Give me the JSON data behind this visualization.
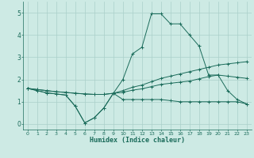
{
  "xlabel": "Humidex (Indice chaleur)",
  "x": [
    0,
    1,
    2,
    3,
    4,
    5,
    6,
    7,
    8,
    9,
    10,
    11,
    12,
    13,
    14,
    15,
    16,
    17,
    18,
    19,
    20,
    21,
    22,
    23
  ],
  "line1": [
    1.6,
    1.5,
    1.4,
    1.35,
    1.3,
    0.8,
    0.05,
    0.28,
    0.72,
    1.38,
    1.1,
    1.1,
    1.1,
    1.1,
    1.1,
    1.05,
    1.0,
    1.0,
    1.0,
    1.0,
    1.0,
    1.0,
    1.0,
    0.9
  ],
  "line2": [
    1.6,
    1.5,
    1.4,
    1.35,
    1.3,
    0.8,
    0.05,
    0.28,
    0.72,
    1.38,
    2.0,
    3.15,
    3.45,
    4.95,
    4.95,
    4.5,
    4.5,
    4.0,
    3.5,
    2.2,
    2.2,
    1.5,
    1.1,
    0.9
  ],
  "line3": [
    1.6,
    1.55,
    1.5,
    1.45,
    1.42,
    1.38,
    1.35,
    1.33,
    1.33,
    1.38,
    1.5,
    1.65,
    1.75,
    1.9,
    2.05,
    2.15,
    2.25,
    2.35,
    2.45,
    2.55,
    2.65,
    2.7,
    2.75,
    2.8
  ],
  "line4": [
    1.6,
    1.55,
    1.5,
    1.45,
    1.42,
    1.38,
    1.35,
    1.33,
    1.33,
    1.38,
    1.42,
    1.52,
    1.58,
    1.68,
    1.78,
    1.83,
    1.88,
    1.93,
    2.03,
    2.13,
    2.2,
    2.15,
    2.1,
    2.05
  ],
  "bg_color": "#cdeae4",
  "line_color": "#1a6b5a",
  "grid_color": "#aacfc9",
  "xlim": [
    -0.5,
    23.5
  ],
  "ylim": [
    -0.25,
    5.5
  ],
  "yticks": [
    0,
    1,
    2,
    3,
    4,
    5
  ],
  "xticks": [
    0,
    1,
    2,
    3,
    4,
    5,
    6,
    7,
    8,
    9,
    10,
    11,
    12,
    13,
    14,
    15,
    16,
    17,
    18,
    19,
    20,
    21,
    22,
    23
  ]
}
